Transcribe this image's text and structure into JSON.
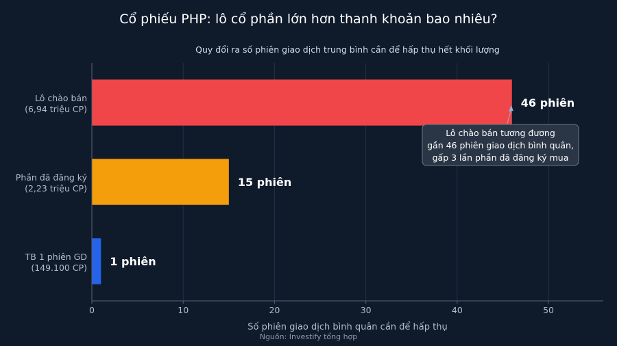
{
  "chart_data": {
    "type": "bar",
    "orientation": "horizontal",
    "title": "Cổ phiếu PHP: lô cổ phần lớn hơn thanh khoản bao nhiêu?",
    "subtitle": "Quy đổi ra số phiên giao dịch trung bình cần để hấp thụ hết khối lượng",
    "xlabel": "Số phiên giao dịch bình quân cần để hấp thụ",
    "source": "Nguồn: Investify tổng hợp",
    "xlim": [
      0,
      56
    ],
    "xticks": [
      0,
      10,
      20,
      30,
      40,
      50
    ],
    "grid": true,
    "categories": [
      [
        "Lô chào bán",
        "(6,94 triệu CP)"
      ],
      [
        "Phần đã đăng ký",
        "(2,23 triệu CP)"
      ],
      [
        "TB 1 phiên GD",
        "(149.100 CP)"
      ]
    ],
    "values": [
      46,
      15,
      1
    ],
    "data_labels": [
      "46 phiên",
      "15 phiên",
      "1 phiên"
    ],
    "colors": [
      "#f04549",
      "#f59e0b",
      "#2563eb"
    ],
    "annotation": {
      "lines": [
        "Lô chào bán tương đương",
        "gần 46 phiên giao dịch bình quân,",
        "gấp 3 lần phần đã đăng ký mua"
      ],
      "target_value": 46,
      "target_category": 0
    }
  }
}
